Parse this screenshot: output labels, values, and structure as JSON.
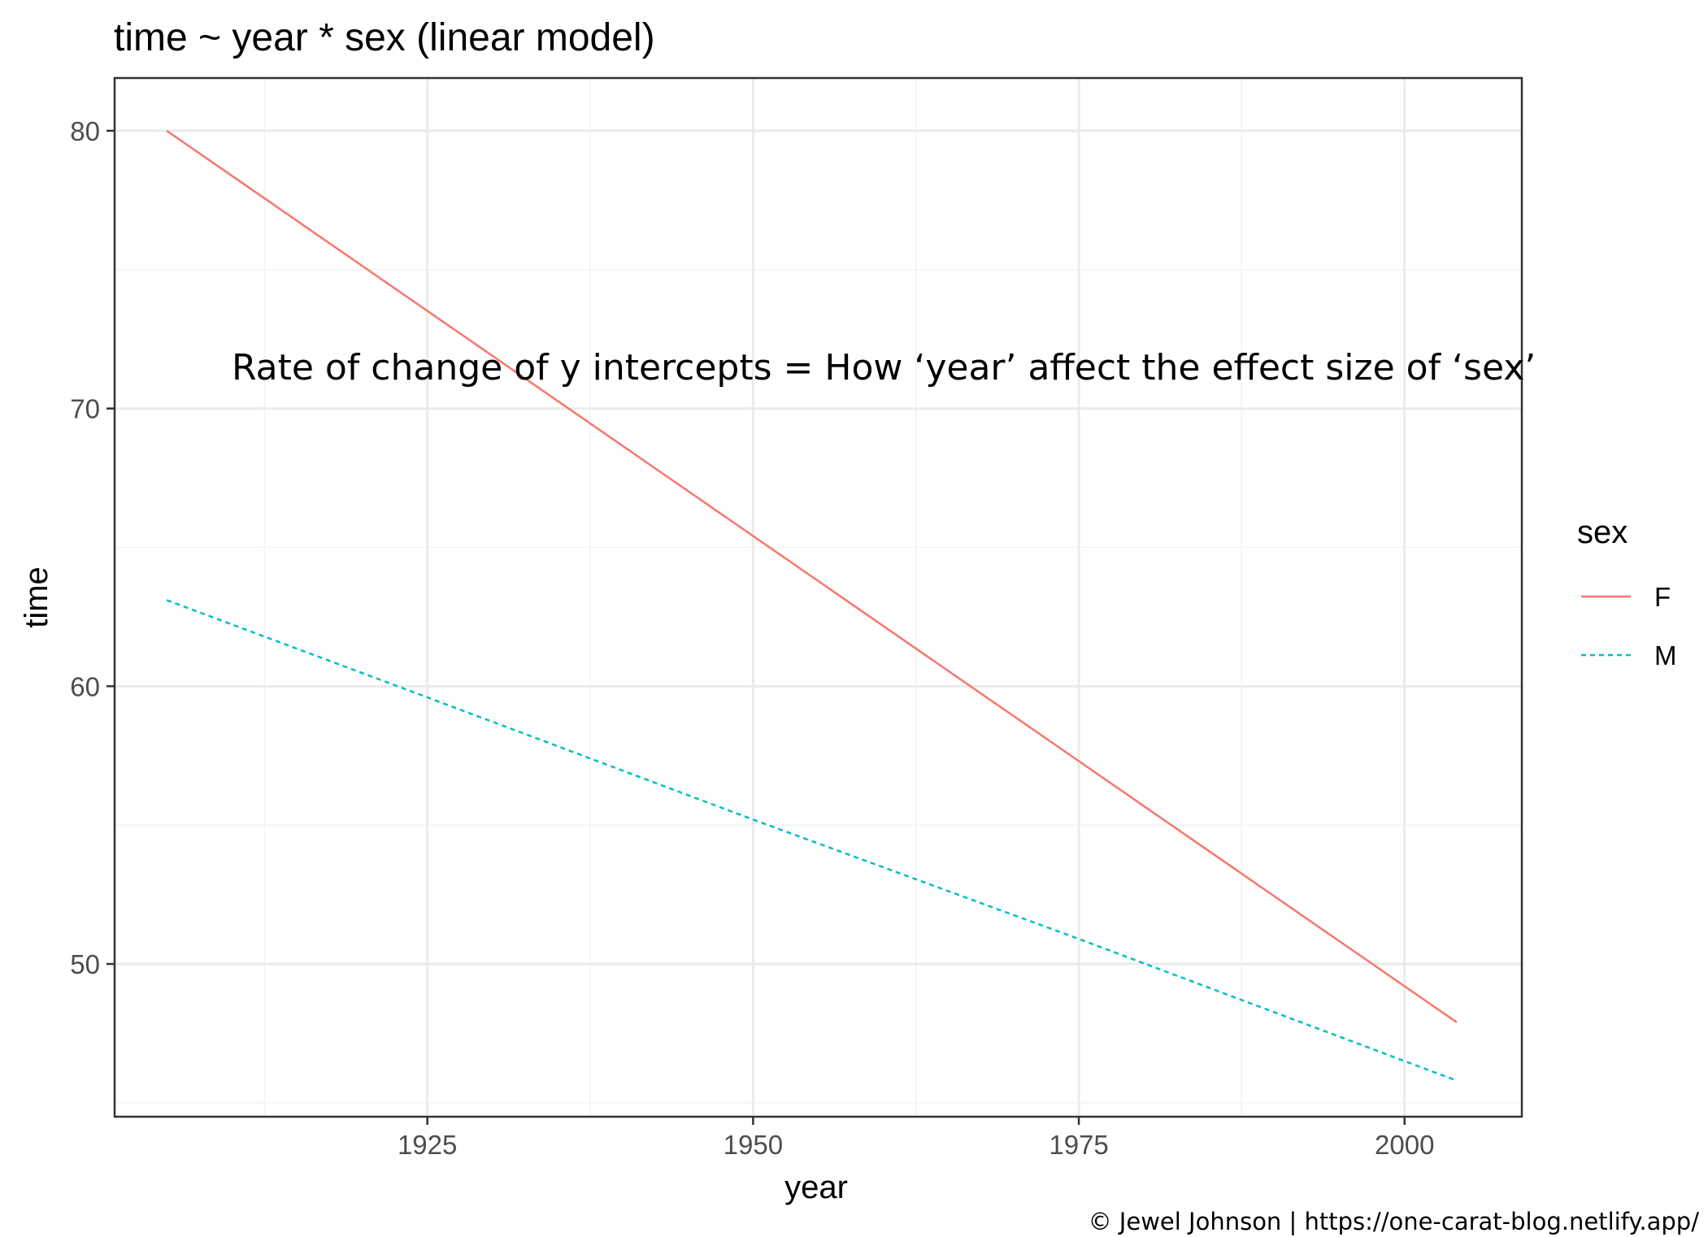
{
  "chart_data": {
    "type": "line",
    "title": "time ~ year * sex (linear model)",
    "xlabel": "year",
    "ylabel": "time",
    "xlim": [
      1901.0,
      2009.0
    ],
    "ylim": [
      44.5,
      81.9
    ],
    "x_ticks": [
      1925,
      1950,
      1975,
      2000
    ],
    "x_minor_ticks": [
      1912.5,
      1937.5,
      1962.5,
      1987.5
    ],
    "y_ticks": [
      50,
      60,
      70,
      80
    ],
    "y_minor_ticks": [
      45,
      55,
      65,
      75
    ],
    "x_tick_labels": [
      "1925",
      "1950",
      "1975",
      "2000"
    ],
    "y_tick_labels": [
      "50",
      "60",
      "70",
      "80"
    ],
    "grid": true,
    "legend": {
      "title": "sex",
      "placement": "right",
      "entries": [
        "F",
        "M"
      ]
    },
    "series": [
      {
        "name": "F",
        "color": "#F8766D",
        "dash": "solid",
        "x": [
          1905,
          2004
        ],
        "y": [
          80.0,
          47.9
        ]
      },
      {
        "name": "M",
        "color": "#00BFC4",
        "dash": "dotted",
        "x": [
          1905,
          1925,
          1950,
          1975,
          2004
        ],
        "y": [
          63.1,
          59.6,
          55.2,
          50.9,
          45.8
        ]
      }
    ],
    "annotation": "Rate of change of y intercepts = How ‘year’ affect the effect size of ‘sex’"
  },
  "credit": "© Jewel Johnson | https://one-carat-blog.netlify.app/"
}
